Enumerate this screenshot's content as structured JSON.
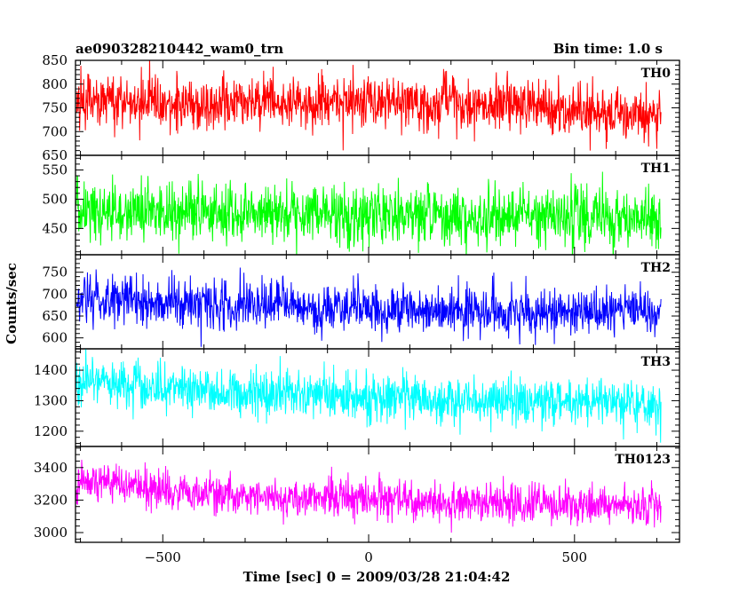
{
  "header": {
    "left_title": "ae090328210442_wam0_trn",
    "right_title": "Bin time: 1.0 s"
  },
  "chart_data": {
    "type": "line",
    "xlabel": "Time [sec] 0 = 2009/03/28 21:04:42",
    "ylabel": "Counts/sec",
    "xlim": [
      -712,
      755
    ],
    "x_ticks": [
      -500,
      0,
      500
    ],
    "x_tick_labels": [
      "−500",
      "0",
      "500"
    ],
    "x_data_range": [
      -710,
      710
    ],
    "bin_time_s": 1.0,
    "grid": false,
    "legend": "none",
    "panels": [
      {
        "name": "TH0",
        "color": "#ff0000",
        "ylim": [
          650,
          850
        ],
        "y_ticks": [
          650,
          700,
          750,
          800,
          850
        ],
        "trend": [
          [
            -710,
            763
          ],
          [
            0,
            760
          ],
          [
            350,
            755
          ],
          [
            710,
            733
          ]
        ],
        "noise_sigma": 28
      },
      {
        "name": "TH1",
        "color": "#00ff00",
        "ylim": [
          405,
          575
        ],
        "y_ticks": [
          450,
          500,
          550
        ],
        "trend": [
          [
            -710,
            478
          ],
          [
            0,
            472
          ],
          [
            710,
            468
          ]
        ],
        "noise_sigma": 25
      },
      {
        "name": "TH2",
        "color": "#0000ff",
        "ylim": [
          575,
          790
        ],
        "y_ticks": [
          600,
          650,
          700,
          750
        ],
        "trend": [
          [
            -710,
            690
          ],
          [
            -200,
            672
          ],
          [
            300,
            660
          ],
          [
            710,
            658
          ]
        ],
        "noise_sigma": 28
      },
      {
        "name": "TH3",
        "color": "#00ffff",
        "ylim": [
          1150,
          1470
        ],
        "y_ticks": [
          1200,
          1300,
          1400
        ],
        "trend": [
          [
            -710,
            1360
          ],
          [
            -200,
            1320
          ],
          [
            300,
            1300
          ],
          [
            710,
            1292
          ]
        ],
        "noise_sigma": 38
      },
      {
        "name": "TH0123",
        "color": "#ff00ff",
        "ylim": [
          2940,
          3530
        ],
        "y_ticks": [
          3000,
          3200,
          3400
        ],
        "trend": [
          [
            -710,
            3310
          ],
          [
            -300,
            3220
          ],
          [
            0,
            3210
          ],
          [
            300,
            3180
          ],
          [
            710,
            3160
          ]
        ],
        "noise_sigma": 60
      }
    ]
  }
}
